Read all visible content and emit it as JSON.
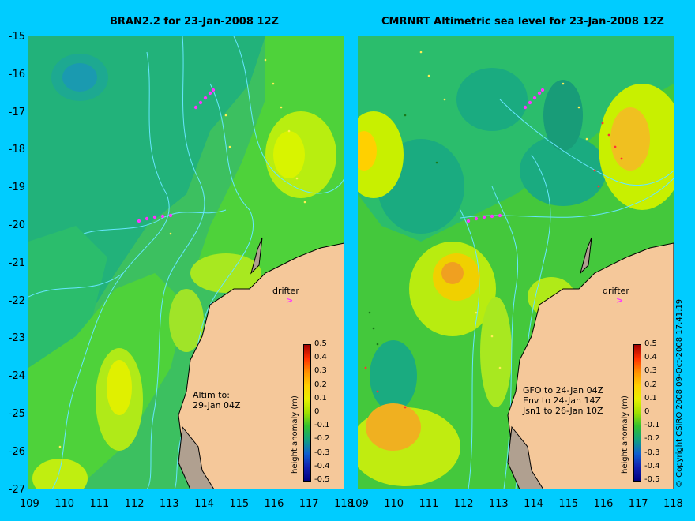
{
  "left_panel": {
    "title": "BRAN2.2 for 23-Jan-2008 12Z",
    "annotation": "Altim to:\n29-Jan 04Z"
  },
  "right_panel": {
    "title": "CMRNRT Altimetric sea level  for 23-Jan-2008 12Z",
    "annotation": "GFO to 24-Jan 04Z\nEnv to 24-Jan 14Z\nJsn1 to 26-Jan 10Z"
  },
  "drifter_label": "drifter",
  "drifter_marker": ">",
  "colorbar": {
    "label": "height anomaly (m)",
    "ticks": [
      "0.5",
      "0.4",
      "0.3",
      "0.2",
      "0.1",
      "0",
      "-0.1",
      "-0.2",
      "-0.3",
      "-0.4",
      "-0.5"
    ]
  },
  "x_ticks": [
    "109",
    "110",
    "111",
    "112",
    "113",
    "114",
    "115",
    "116",
    "117",
    "118"
  ],
  "y_ticks": [
    "-15",
    "-16",
    "-17",
    "-18",
    "-19",
    "-20",
    "-21",
    "-22",
    "-23",
    "-24",
    "-25",
    "-26",
    "-27"
  ],
  "copyright": "© Copyright CSIRO 2008   09-Oct-2008 17:41:19",
  "colors": {
    "background": "#00ccff",
    "land": "#f5c89a",
    "coast": "#b0a090",
    "green": "#44c83c",
    "teal": "#1aab80",
    "yellow": "#ccf000",
    "orange": "#f0a020",
    "drifter": "#ff33ff"
  }
}
